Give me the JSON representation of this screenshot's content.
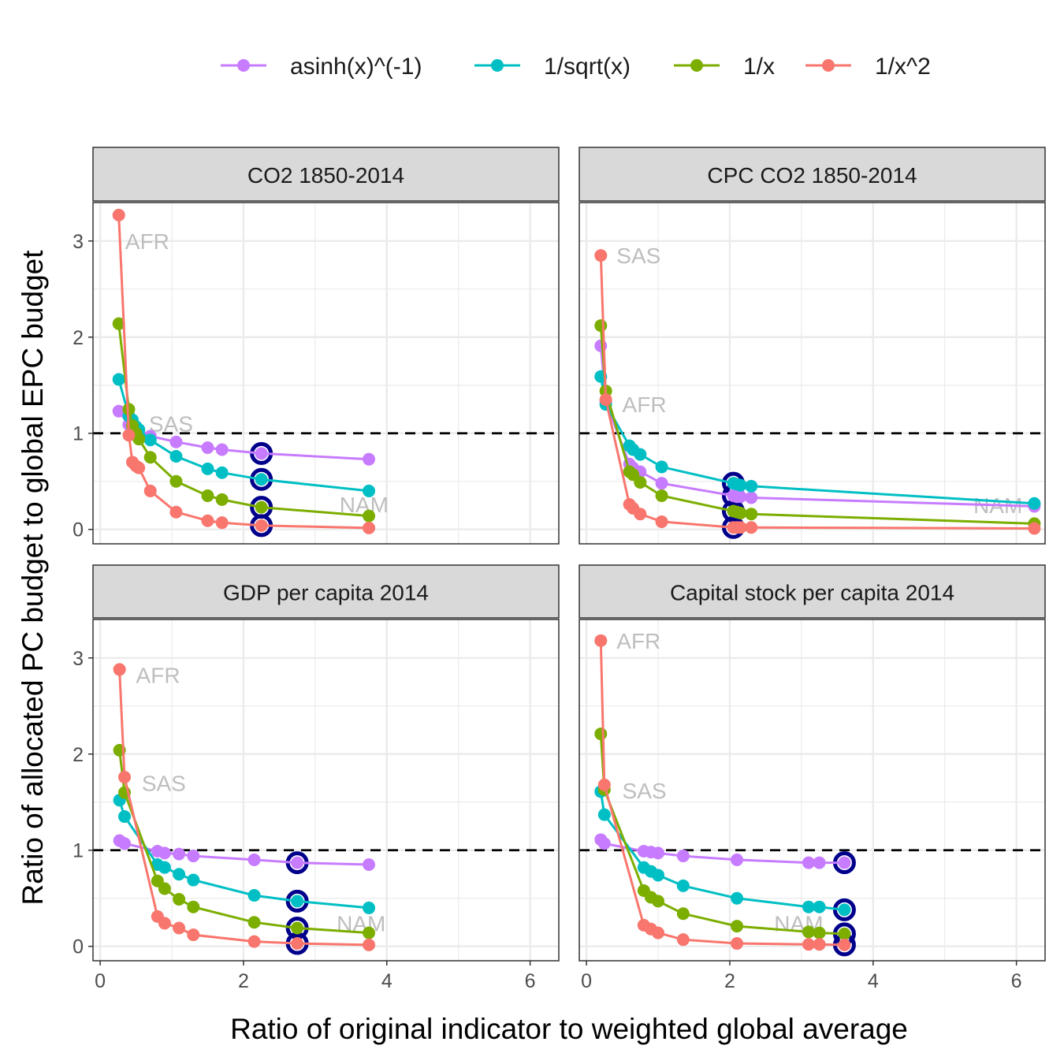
{
  "legend": [
    {
      "key": "asinh",
      "label": "asinh(x)^(-1)",
      "color": "#C77CFF"
    },
    {
      "key": "sqrt",
      "label": "1/sqrt(x)",
      "color": "#00BFC4"
    },
    {
      "key": "inv",
      "label": "1/x",
      "color": "#7CAE00"
    },
    {
      "key": "sq",
      "label": "1/x^2",
      "color": "#F8766D"
    }
  ],
  "highlight_color": "#00008B",
  "reference_line": 1,
  "chart_data": {
    "type": "line",
    "xlabel": "Ratio of original indicator to weighted global average",
    "ylabel": "Ratio of allocated PC budget to global EPC budget",
    "xlim": [
      -0.1,
      6.4
    ],
    "ylim": [
      -0.15,
      3.4
    ],
    "xticks": [
      0,
      2,
      4,
      6
    ],
    "yticks": [
      0,
      1,
      2,
      3
    ],
    "grid": true,
    "legend_position": "top",
    "panels": [
      {
        "title": "CO2 1850-2014",
        "x": [
          0.26,
          0.4,
          0.45,
          0.5,
          0.54,
          0.7,
          1.06,
          1.5,
          1.7,
          2.25,
          3.75
        ],
        "series": [
          {
            "key": "asinh",
            "values": [
              1.23,
              1.09,
              1.07,
              1.05,
              1.03,
              0.97,
              0.91,
              0.85,
              0.83,
              0.79,
              0.73
            ]
          },
          {
            "key": "sqrt",
            "values": [
              1.56,
              1.18,
              1.14,
              1.07,
              1.04,
              0.93,
              0.76,
              0.63,
              0.59,
              0.52,
              0.4
            ]
          },
          {
            "key": "inv",
            "values": [
              2.14,
              1.25,
              1.08,
              1.0,
              0.94,
              0.75,
              0.5,
              0.35,
              0.31,
              0.23,
              0.14
            ]
          },
          {
            "key": "sq",
            "values": [
              3.27,
              0.98,
              0.7,
              0.66,
              0.64,
              0.4,
              0.18,
              0.09,
              0.07,
              0.04,
              0.015
            ]
          }
        ],
        "highlight_x": 2.25,
        "labels": [
          {
            "text": "AFR",
            "x": 0.35,
            "y": 3.0
          },
          {
            "text": "SAS",
            "x": 0.68,
            "y": 1.1
          },
          {
            "text": "NAM",
            "x": 3.34,
            "y": 0.26
          }
        ]
      },
      {
        "title": "CPC CO2 1850-2014",
        "x": [
          0.2,
          0.27,
          0.6,
          0.65,
          0.75,
          1.05,
          2.05,
          2.1,
          2.15,
          2.3,
          6.25
        ],
        "series": [
          {
            "key": "asinh",
            "values": [
              1.91,
              1.33,
              0.68,
              0.64,
              0.6,
              0.48,
              0.35,
              0.34,
              0.34,
              0.33,
              0.24
            ]
          },
          {
            "key": "sqrt",
            "values": [
              1.59,
              1.3,
              0.87,
              0.83,
              0.78,
              0.65,
              0.48,
              0.47,
              0.46,
              0.45,
              0.27
            ]
          },
          {
            "key": "inv",
            "values": [
              2.12,
              1.44,
              0.6,
              0.57,
              0.49,
              0.35,
              0.19,
              0.18,
              0.17,
              0.16,
              0.06
            ]
          },
          {
            "key": "sq",
            "values": [
              2.85,
              1.35,
              0.26,
              0.22,
              0.16,
              0.08,
              0.02,
              0.02,
              0.02,
              0.02,
              0.01
            ]
          }
        ],
        "highlight_x": 2.05,
        "labels": [
          {
            "text": "SAS",
            "x": 0.42,
            "y": 2.85
          },
          {
            "text": "AFR",
            "x": 0.5,
            "y": 1.3
          },
          {
            "text": "NAM",
            "x": 5.4,
            "y": 0.25
          }
        ]
      },
      {
        "title": "GDP per capita 2014",
        "x": [
          0.27,
          0.34,
          0.8,
          0.9,
          1.1,
          1.3,
          2.15,
          2.75,
          3.75
        ],
        "series": [
          {
            "key": "asinh",
            "values": [
              1.1,
              1.07,
              0.99,
              0.97,
              0.96,
              0.94,
              0.9,
              0.87,
              0.85
            ]
          },
          {
            "key": "sqrt",
            "values": [
              1.52,
              1.35,
              0.85,
              0.82,
              0.75,
              0.69,
              0.53,
              0.47,
              0.4
            ]
          },
          {
            "key": "inv",
            "values": [
              2.04,
              1.6,
              0.68,
              0.6,
              0.49,
              0.41,
              0.25,
              0.19,
              0.14
            ]
          },
          {
            "key": "sq",
            "values": [
              2.88,
              1.76,
              0.31,
              0.24,
              0.19,
              0.12,
              0.05,
              0.03,
              0.015
            ]
          }
        ],
        "highlight_x": 2.75,
        "labels": [
          {
            "text": "AFR",
            "x": 0.5,
            "y": 2.82
          },
          {
            "text": "SAS",
            "x": 0.58,
            "y": 1.7
          },
          {
            "text": "NAM",
            "x": 3.3,
            "y": 0.24
          }
        ]
      },
      {
        "title": "Capital stock per capita 2014",
        "x": [
          0.2,
          0.25,
          0.8,
          0.9,
          1.0,
          1.35,
          2.1,
          3.1,
          3.25,
          3.6
        ],
        "series": [
          {
            "key": "asinh",
            "values": [
              1.11,
              1.07,
              0.99,
              0.98,
              0.97,
              0.94,
              0.9,
              0.87,
              0.87,
              0.87
            ]
          },
          {
            "key": "sqrt",
            "values": [
              1.61,
              1.37,
              0.82,
              0.78,
              0.74,
              0.63,
              0.5,
              0.41,
              0.41,
              0.38
            ]
          },
          {
            "key": "inv",
            "values": [
              2.21,
              1.63,
              0.58,
              0.51,
              0.47,
              0.34,
              0.21,
              0.15,
              0.14,
              0.13
            ]
          },
          {
            "key": "sq",
            "values": [
              3.18,
              1.68,
              0.22,
              0.18,
              0.14,
              0.07,
              0.03,
              0.02,
              0.02,
              0.015
            ]
          }
        ],
        "highlight_x": 3.6,
        "labels": [
          {
            "text": "AFR",
            "x": 0.42,
            "y": 3.18
          },
          {
            "text": "SAS",
            "x": 0.5,
            "y": 1.62
          },
          {
            "text": "NAM",
            "x": 2.62,
            "y": 0.24
          }
        ]
      }
    ]
  }
}
